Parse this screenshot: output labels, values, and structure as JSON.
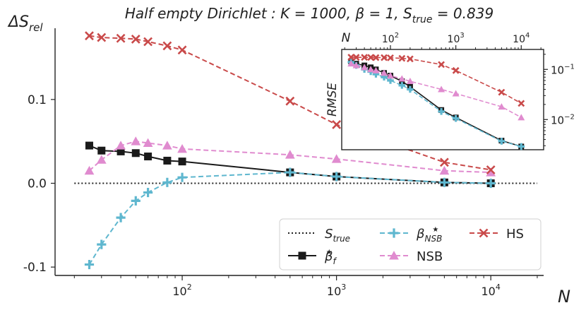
{
  "chart_data": {
    "type": "line",
    "title": "Half empty Dirichlet : K = 1000,  β = 1, S_true = 0.839",
    "title_parts": {
      "main": "Half empty Dirichlet : K = 1000,  β = 1, S",
      "sub": "true",
      "tail": " = 0.839"
    },
    "ylabel": {
      "main": "ΔS",
      "sub": "rel"
    },
    "xlabel": "N",
    "xscale": "log",
    "xlim": [
      15,
      22000
    ],
    "ylim": [
      -0.11,
      0.185
    ],
    "yticks": [
      {
        "v": -0.1,
        "label": "-0.1"
      },
      {
        "v": 0.0,
        "label": "0.0"
      },
      {
        "v": 0.1,
        "label": "0.1"
      }
    ],
    "xticks": [
      {
        "v": 100,
        "base": "10",
        "exp": "2"
      },
      {
        "v": 1000,
        "base": "10",
        "exp": "3"
      },
      {
        "v": 10000,
        "base": "10",
        "exp": "4"
      }
    ],
    "reference": {
      "name": "S_true",
      "y": 0.0,
      "color": "#222222"
    },
    "series": [
      {
        "name": "β_f*",
        "color": "#1a1a1a",
        "marker": "square",
        "linestyle": "solid",
        "x": [
          25,
          30,
          40,
          50,
          60,
          80,
          100,
          500,
          1000,
          5000,
          10000
        ],
        "y": [
          0.045,
          0.039,
          0.038,
          0.036,
          0.032,
          0.027,
          0.026,
          0.013,
          0.008,
          0.001,
          0.0
        ]
      },
      {
        "name": "β_NSB*",
        "color": "#5fb7cf",
        "marker": "plus",
        "linestyle": "dashed",
        "x": [
          25,
          30,
          40,
          50,
          60,
          80,
          100,
          500,
          1000,
          5000,
          10000
        ],
        "y": [
          -0.097,
          -0.073,
          -0.041,
          -0.021,
          -0.011,
          0.001,
          0.007,
          0.013,
          0.008,
          0.001,
          0.0
        ]
      },
      {
        "name": "NSB",
        "color": "#e08bcf",
        "marker": "triangle",
        "linestyle": "dashed",
        "x": [
          25,
          30,
          40,
          50,
          60,
          80,
          100,
          500,
          1000,
          5000,
          10000
        ],
        "y": [
          0.015,
          0.028,
          0.045,
          0.05,
          0.048,
          0.045,
          0.041,
          0.034,
          0.029,
          0.015,
          0.013
        ]
      },
      {
        "name": "HS",
        "color": "#c94a4a",
        "marker": "x",
        "linestyle": "dashed",
        "x": [
          25,
          30,
          40,
          50,
          60,
          80,
          100,
          500,
          1000,
          5000,
          10000
        ],
        "y": [
          0.176,
          0.174,
          0.173,
          0.172,
          0.169,
          0.164,
          0.159,
          0.098,
          0.07,
          0.025,
          0.016
        ]
      }
    ],
    "legend": {
      "placement": "bottom-right",
      "entries": [
        {
          "key": "ref",
          "label": {
            "main": "S",
            "sub": "true"
          }
        },
        {
          "key": "s1",
          "label": {
            "main": "β",
            "sub": "NSB",
            "sup": "★"
          }
        },
        {
          "key": "s3",
          "label": {
            "main": "HS"
          }
        },
        {
          "key": "s0",
          "label": {
            "main": "β",
            "sub": "f",
            "sup": "★"
          }
        },
        {
          "key": "s2",
          "label": {
            "main": "NSB"
          }
        }
      ]
    },
    "inset": {
      "type": "line",
      "placement": "top-right",
      "ylabel": "RMSE",
      "xlabel": "N",
      "xscale": "log",
      "yscale": "log",
      "xlim": [
        18,
        22000
      ],
      "ylim": [
        0.0025,
        0.25
      ],
      "xticks": [
        {
          "v": 100,
          "base": "10",
          "exp": "2"
        },
        {
          "v": 1000,
          "base": "10",
          "exp": "3"
        },
        {
          "v": 10000,
          "base": "10",
          "exp": "4"
        }
      ],
      "yticks": [
        {
          "v": 0.01,
          "base": "10",
          "exp": "−2"
        },
        {
          "v": 0.1,
          "base": "10",
          "exp": "−1"
        }
      ],
      "series": [
        {
          "name": "β_f*",
          "x": [
            25,
            30,
            40,
            50,
            60,
            80,
            100,
            150,
            200,
            600,
            1000,
            5000,
            10000
          ],
          "y": [
            0.145,
            0.13,
            0.12,
            0.11,
            0.1,
            0.085,
            0.075,
            0.058,
            0.045,
            0.0155,
            0.011,
            0.0038,
            0.0029
          ]
        },
        {
          "name": "β_NSB*",
          "x": [
            25,
            30,
            40,
            50,
            60,
            80,
            100,
            150,
            200,
            600,
            1000,
            5000,
            10000
          ],
          "y": [
            0.14,
            0.12,
            0.1,
            0.09,
            0.08,
            0.07,
            0.06,
            0.048,
            0.04,
            0.0145,
            0.0105,
            0.0037,
            0.0029
          ]
        },
        {
          "name": "NSB",
          "x": [
            25,
            30,
            40,
            50,
            60,
            80,
            100,
            150,
            200,
            600,
            1000,
            5000,
            10000
          ],
          "y": [
            0.13,
            0.12,
            0.11,
            0.1,
            0.095,
            0.085,
            0.075,
            0.065,
            0.058,
            0.04,
            0.033,
            0.018,
            0.011
          ]
        },
        {
          "name": "HS",
          "x": [
            25,
            30,
            40,
            50,
            60,
            80,
            100,
            150,
            200,
            600,
            1000,
            5000,
            10000
          ],
          "y": [
            0.175,
            0.174,
            0.174,
            0.173,
            0.172,
            0.172,
            0.17,
            0.166,
            0.162,
            0.125,
            0.095,
            0.035,
            0.021
          ]
        }
      ]
    }
  }
}
